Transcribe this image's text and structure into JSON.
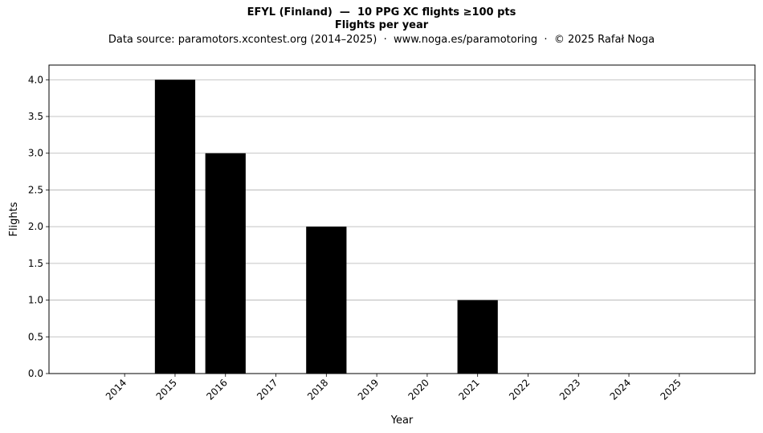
{
  "chart_data": {
    "type": "bar",
    "title": "EFYL (Finland)  —  10 PPG XC flights ≥100 pts",
    "title2": "Flights per year",
    "subtitle": "Data source: paramotors.xcontest.org (2014–2025)  ·  www.noga.es/paramotoring  ·  © 2025 Rafał Noga",
    "xlabel": "Year",
    "ylabel": "Flights",
    "categories": [
      "2014",
      "2015",
      "2016",
      "2017",
      "2018",
      "2019",
      "2020",
      "2021",
      "2022",
      "2023",
      "2024",
      "2025"
    ],
    "values": [
      0,
      4,
      3,
      0,
      2,
      0,
      0,
      1,
      0,
      0,
      0,
      0
    ],
    "ylim": [
      0,
      4.2
    ],
    "yticks": [
      "0.0",
      "0.5",
      "1.0",
      "1.5",
      "2.0",
      "2.5",
      "3.0",
      "3.5",
      "4.0"
    ],
    "grid": "horizontal",
    "bar_color": "#000000",
    "grid_color": "#b0b0b0"
  }
}
